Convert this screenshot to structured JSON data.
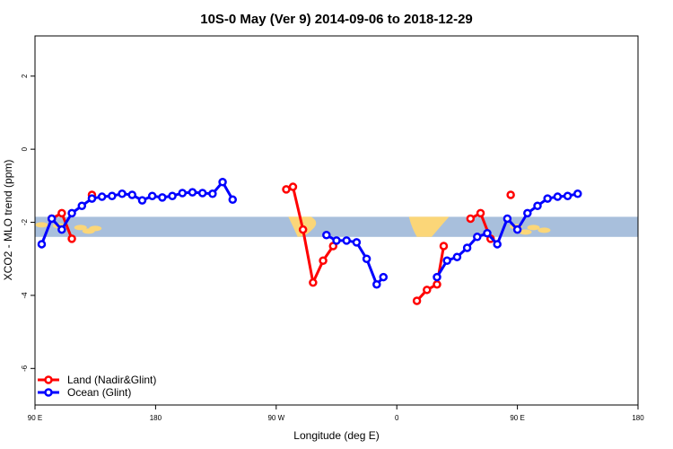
{
  "chart_data": {
    "type": "line",
    "title": "10S-0 May (Ver 9)   2014-09-06 to 2018-12-29",
    "xlabel": "Longitude (deg E)",
    "ylabel": "XCO2 - MLO trend (ppm)",
    "xlim": [
      90,
      450
    ],
    "ylim": [
      -7,
      3.1
    ],
    "x_ticks": [
      {
        "value": 90,
        "label": "90 E"
      },
      {
        "value": 180,
        "label": "180"
      },
      {
        "value": 270,
        "label": "90 W"
      },
      {
        "value": 360,
        "label": "0"
      },
      {
        "value": 450,
        "label": "90 E"
      },
      {
        "value": 540,
        "label": "180"
      }
    ],
    "y_ticks": [
      {
        "value": 2,
        "label": "2"
      },
      {
        "value": 0,
        "label": "0"
      },
      {
        "value": -2,
        "label": "-2"
      },
      {
        "value": -4,
        "label": "-4"
      },
      {
        "value": -6,
        "label": "-6"
      }
    ],
    "band": {
      "ymin": -2.4,
      "ymax": -1.85,
      "color": "#a8bfdc",
      "land_color": "#fbd678"
    },
    "legend": {
      "position": "bottom-left"
    },
    "grid": false,
    "series": [
      {
        "name": "Land (Nadir&Glint)",
        "color": "#ff0000",
        "segments": [
          [
            [
              102.5,
              -1.9
            ],
            [
              110,
              -1.75
            ],
            [
              117.5,
              -2.45
            ]
          ],
          [
            [
              132.5,
              -1.25
            ]
          ],
          [
            [
              277.5,
              -1.1
            ],
            [
              282.5,
              -1.03
            ],
            [
              290,
              -2.2
            ],
            [
              297.5,
              -3.65
            ],
            [
              305,
              -3.05
            ],
            [
              312.5,
              -2.65
            ]
          ],
          [
            [
              375,
              -4.15
            ],
            [
              382.5,
              -3.85
            ],
            [
              390,
              -3.7
            ],
            [
              395,
              -2.65
            ]
          ],
          [
            [
              415,
              -1.9
            ],
            [
              422.5,
              -1.75
            ],
            [
              430,
              -2.45
            ]
          ],
          [
            [
              445,
              -1.25
            ]
          ]
        ]
      },
      {
        "name": "Ocean (Glint)",
        "color": "#0000ff",
        "segments": [
          [
            [
              95,
              -2.6
            ],
            [
              102.5,
              -1.9
            ],
            [
              110,
              -2.2
            ],
            [
              117.5,
              -1.75
            ],
            [
              125,
              -1.55
            ],
            [
              132.5,
              -1.35
            ],
            [
              140,
              -1.3
            ],
            [
              147.5,
              -1.28
            ],
            [
              155,
              -1.22
            ],
            [
              162.5,
              -1.25
            ],
            [
              170,
              -1.4
            ],
            [
              177.5,
              -1.28
            ],
            [
              185,
              -1.32
            ],
            [
              192.5,
              -1.28
            ],
            [
              200,
              -1.2
            ],
            [
              207.5,
              -1.18
            ],
            [
              215,
              -1.2
            ],
            [
              222.5,
              -1.22
            ],
            [
              230,
              -0.9
            ],
            [
              237.5,
              -1.38
            ]
          ],
          [
            [
              307.5,
              -2.35
            ],
            [
              315,
              -2.5
            ],
            [
              322.5,
              -2.5
            ],
            [
              330,
              -2.55
            ],
            [
              337.5,
              -3.0
            ],
            [
              345,
              -3.7
            ],
            [
              350,
              -3.5
            ]
          ],
          [
            [
              390,
              -3.5
            ],
            [
              397.5,
              -3.05
            ],
            [
              405,
              -2.95
            ],
            [
              412.5,
              -2.7
            ],
            [
              420,
              -2.4
            ],
            [
              427.5,
              -2.3
            ],
            [
              435,
              -2.6
            ],
            [
              442.5,
              -1.9
            ],
            [
              450,
              -2.2
            ],
            [
              457.5,
              -1.75
            ],
            [
              465,
              -1.55
            ],
            [
              472.5,
              -1.35
            ],
            [
              480,
              -1.3
            ],
            [
              487.5,
              -1.28
            ],
            [
              495,
              -1.22
            ]
          ]
        ]
      }
    ]
  }
}
